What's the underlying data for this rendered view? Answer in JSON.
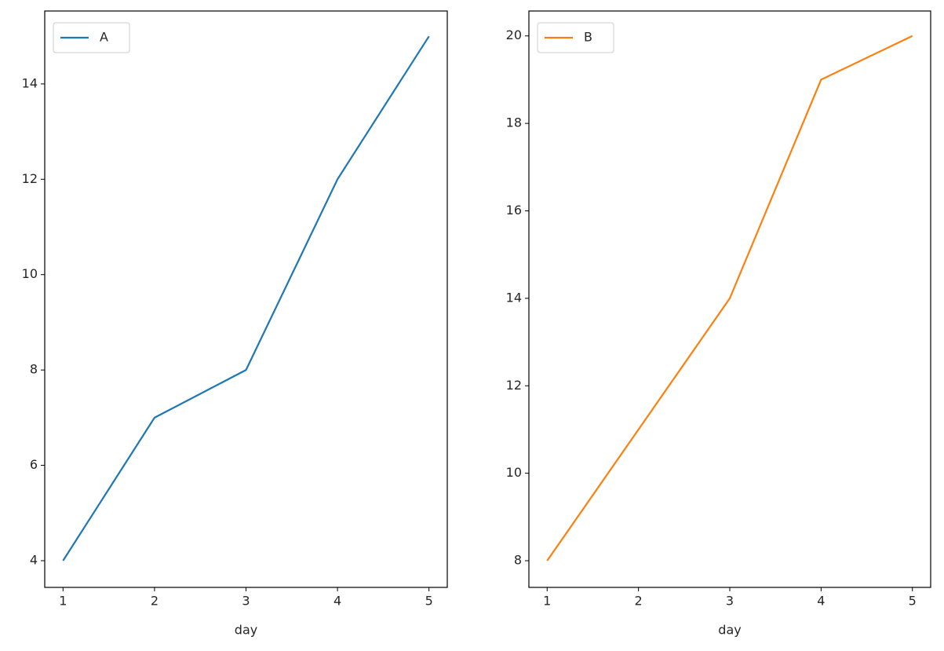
{
  "chart_data": [
    {
      "type": "line",
      "xlabel": "day",
      "x": [
        1,
        2,
        3,
        4,
        5
      ],
      "series": [
        {
          "name": "A",
          "color": "#1f77b4",
          "values": [
            4,
            7,
            8,
            12,
            15
          ]
        }
      ],
      "xlim": [
        0.8,
        5.2
      ],
      "xticks": [
        1,
        2,
        3,
        4,
        5
      ],
      "ylim": [
        3.44,
        15.53
      ],
      "yticks": [
        4,
        6,
        8,
        10,
        12,
        14
      ],
      "legend": "upper left"
    },
    {
      "type": "line",
      "xlabel": "day",
      "x": [
        1,
        2,
        3,
        4,
        5
      ],
      "series": [
        {
          "name": "B",
          "color": "#ff7f0e",
          "values": [
            8,
            11,
            14,
            19,
            20
          ]
        }
      ],
      "xlim": [
        0.8,
        5.2
      ],
      "xticks": [
        1,
        2,
        3,
        4,
        5
      ],
      "ylim": [
        7.39,
        20.57
      ],
      "yticks": [
        8,
        10,
        12,
        14,
        16,
        18,
        20
      ],
      "legend": "upper left"
    }
  ]
}
